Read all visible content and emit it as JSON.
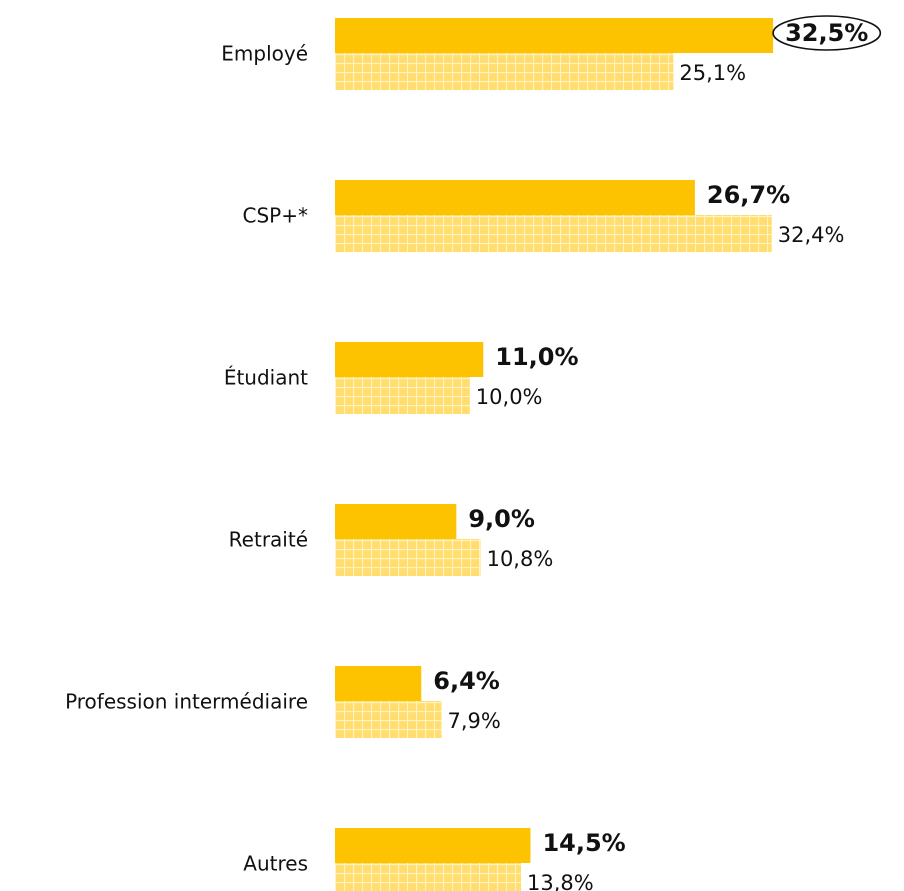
{
  "chart_data": {
    "type": "bar",
    "orientation": "horizontal",
    "categories": [
      "Employé",
      "CSP+*",
      "Étudiant",
      "Retraité",
      "Profession intermédiaire",
      "Autres"
    ],
    "series": [
      {
        "color": "#fdc300",
        "values": [
          32.5,
          26.7,
          11.0,
          9.0,
          6.4,
          14.5
        ],
        "value_labels": [
          "32,5%",
          "26,7%",
          "11,0%",
          "9,0%",
          "6,4%",
          "14,5%"
        ]
      },
      {
        "color": "#ffdd6e",
        "pattern": "grid",
        "values": [
          25.1,
          32.4,
          10.0,
          10.8,
          7.9,
          13.8
        ],
        "value_labels": [
          "25,1%",
          "32,4%",
          "10,0%",
          "10,8%",
          "7,9%",
          "13,8%"
        ]
      }
    ],
    "highlight": {
      "series": 0,
      "index": 0
    }
  }
}
